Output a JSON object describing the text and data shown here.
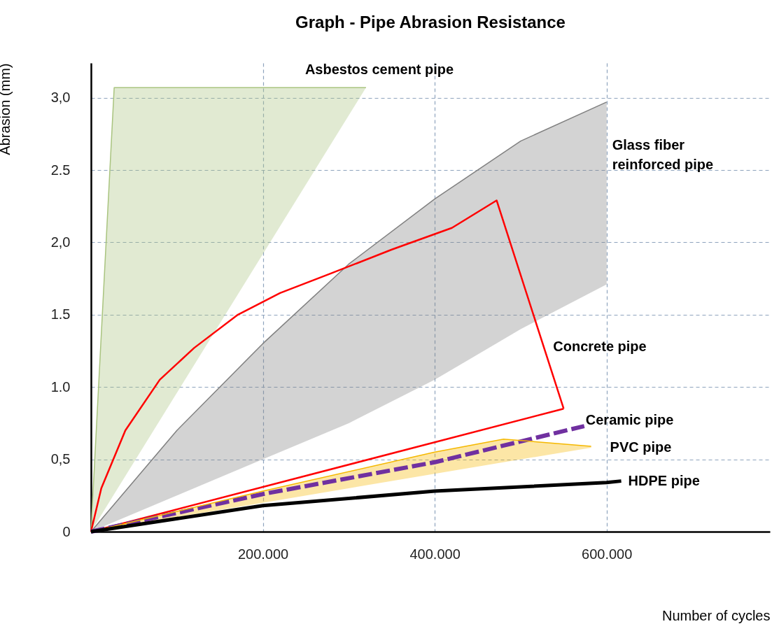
{
  "chart_data": {
    "type": "line",
    "title": "Graph - Pipe Abrasion Resistance",
    "xlabel": "Number of cycles",
    "ylabel": "Abrasion (mm)",
    "xlim": [
      0,
      790
    ],
    "ylim": [
      0,
      3.24
    ],
    "xticks": [
      {
        "value": 200,
        "label": "200.000"
      },
      {
        "value": 400,
        "label": "400.000"
      },
      {
        "value": 600,
        "label": "600.000"
      }
    ],
    "yticks": [
      0,
      {
        "value": 0.5,
        "label": "0,5"
      },
      {
        "value": 1,
        "label": "1.0"
      },
      {
        "value": 1.5,
        "label": "1.5"
      },
      {
        "value": 2,
        "label": "2,0"
      },
      {
        "value": 2.5,
        "label": "2.5"
      },
      {
        "value": 3,
        "label": "3,0"
      }
    ],
    "grid": true,
    "series": [
      {
        "name": "Asbestos cement pipe",
        "color": "#a9c47f",
        "x": [
          0,
          27,
          320
        ],
        "values": [
          0,
          3.07,
          3.07
        ],
        "upper": [
          0,
          3.07,
          3.07
        ],
        "lower": [
          0,
          0.26,
          3.07
        ]
      },
      {
        "name": "Glass fiber\nreinforced pipe",
        "color": "#808080",
        "x": [
          0,
          100,
          200,
          300,
          400,
          500,
          600
        ],
        "values": [
          0,
          0.7,
          1.3,
          1.85,
          2.3,
          2.7,
          2.97
        ],
        "upper": [
          0,
          0.7,
          1.3,
          1.85,
          2.3,
          2.7,
          2.97
        ],
        "lower": [
          0,
          0.25,
          0.5,
          0.75,
          1.05,
          1.4,
          1.71
        ]
      },
      {
        "name": "Concrete pipe",
        "color": "#ff0000",
        "x": [
          0,
          12,
          40,
          80,
          120,
          171,
          220,
          277,
          350,
          420,
          472,
          550
        ],
        "values": [
          0,
          0.3,
          0.7,
          1.05,
          1.27,
          1.5,
          1.65,
          1.78,
          1.95,
          2.1,
          2.29,
          0.85
        ]
      },
      {
        "color": "#ff0000",
        "x": [
          0,
          550
        ],
        "values": [
          0,
          0.85
        ]
      },
      {
        "name": "Ceramic pipe",
        "line_style": "dashed",
        "color": "#7030a0",
        "x": [
          0,
          200,
          400,
          574
        ],
        "values": [
          0,
          0.26,
          0.48,
          0.73
        ]
      },
      {
        "name": "PVC pipe",
        "color": "#f5b800",
        "x": [
          0,
          200,
          400,
          480,
          582
        ],
        "values": [
          0,
          0.28,
          0.55,
          0.64,
          0.59
        ],
        "upper": [
          0,
          0.28,
          0.55,
          0.64,
          0.59
        ],
        "lower": [
          0,
          0.2,
          0.4,
          0.48,
          0.58
        ]
      },
      {
        "name": "HDPE pipe",
        "color": "#000000",
        "x": [
          0,
          200,
          400,
          600,
          617
        ],
        "values": [
          0,
          0.18,
          0.28,
          0.34,
          0.35
        ]
      }
    ]
  }
}
